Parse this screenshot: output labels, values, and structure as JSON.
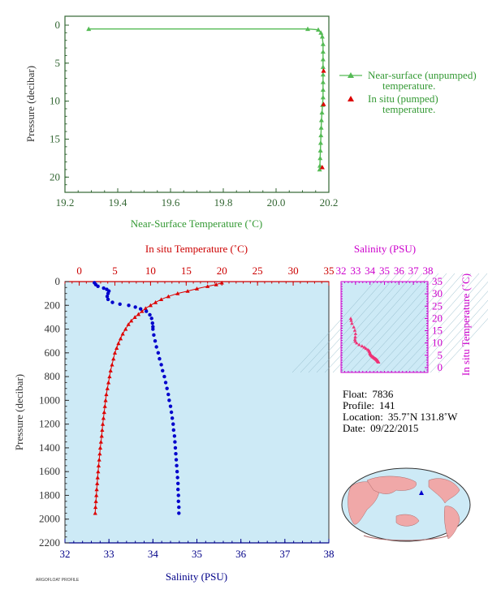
{
  "chart_data": [
    {
      "type": "line",
      "id": "near-surface",
      "xlabel": "Near-Surface Temperature (˚C)",
      "ylabel": "Pressure (decibar)",
      "xlim": [
        19.2,
        20.2
      ],
      "ylim": [
        22,
        0
      ],
      "xticks": [
        "19.2",
        "19.4",
        "19.6",
        "19.8",
        "20.0",
        "20.2"
      ],
      "yticks": [
        "0",
        "5",
        "10",
        "15",
        "20"
      ],
      "series": [
        {
          "name": "Near-surface (unpumped) temperature.",
          "color": "#55bb55",
          "marker": "triangle",
          "points": [
            [
              19.29,
              0.5
            ],
            [
              20.12,
              0.5
            ],
            [
              20.16,
              0.6
            ],
            [
              20.17,
              1.0
            ],
            [
              20.175,
              1.5
            ],
            [
              20.178,
              2.5
            ],
            [
              20.178,
              3.5
            ],
            [
              20.178,
              4.5
            ],
            [
              20.178,
              5.5
            ],
            [
              20.178,
              6.5
            ],
            [
              20.178,
              7.5
            ],
            [
              20.178,
              8.5
            ],
            [
              20.178,
              9.5
            ],
            [
              20.176,
              10.5
            ],
            [
              20.174,
              11.5
            ],
            [
              20.172,
              12.5
            ],
            [
              20.171,
              13.5
            ],
            [
              20.17,
              14.5
            ],
            [
              20.169,
              15.5
            ],
            [
              20.168,
              16.5
            ],
            [
              20.167,
              17.5
            ],
            [
              20.166,
              18.5
            ],
            [
              20.165,
              19.0
            ]
          ]
        },
        {
          "name": "In situ (pumped) temperature.",
          "color": "#dd0000",
          "marker": "triangle",
          "points": [
            [
              20.18,
              6.0
            ],
            [
              20.18,
              10.4
            ],
            [
              20.175,
              18.7
            ]
          ]
        }
      ],
      "legend": "right"
    },
    {
      "type": "line",
      "id": "profile",
      "ylabel": "Pressure (decibar)",
      "ylim": [
        2200,
        0
      ],
      "yticks": [
        "0",
        "200",
        "400",
        "600",
        "800",
        "1000",
        "1200",
        "1400",
        "1600",
        "1800",
        "2000",
        "2200"
      ],
      "top_axis": {
        "label": "In situ Temperature (˚C)",
        "lim": [
          -2,
          35
        ],
        "ticks": [
          "0",
          "5",
          "10",
          "15",
          "20",
          "25",
          "30",
          "35"
        ]
      },
      "bottom_axis": {
        "label": "Salinity (PSU)",
        "lim": [
          32,
          38
        ],
        "ticks": [
          "32",
          "33",
          "34",
          "35",
          "36",
          "37",
          "38"
        ]
      },
      "series": [
        {
          "name": "In situ Temperature",
          "color": "#dd0000",
          "marker": "triangle",
          "axis": "top",
          "points": [
            [
              20.0,
              10
            ],
            [
              19.2,
              25
            ],
            [
              18.0,
              40
            ],
            [
              16.5,
              60
            ],
            [
              15.2,
              80
            ],
            [
              13.8,
              100
            ],
            [
              12.5,
              125
            ],
            [
              11.5,
              150
            ],
            [
              10.7,
              175
            ],
            [
              10.0,
              200
            ],
            [
              9.3,
              225
            ],
            [
              8.8,
              250
            ],
            [
              8.3,
              275
            ],
            [
              7.8,
              300
            ],
            [
              7.3,
              330
            ],
            [
              6.9,
              360
            ],
            [
              6.5,
              400
            ],
            [
              6.1,
              440
            ],
            [
              5.8,
              480
            ],
            [
              5.5,
              520
            ],
            [
              5.25,
              560
            ],
            [
              5.0,
              600
            ],
            [
              4.8,
              650
            ],
            [
              4.6,
              700
            ],
            [
              4.4,
              750
            ],
            [
              4.25,
              800
            ],
            [
              4.1,
              850
            ],
            [
              3.95,
              900
            ],
            [
              3.8,
              950
            ],
            [
              3.7,
              1000
            ],
            [
              3.6,
              1050
            ],
            [
              3.5,
              1100
            ],
            [
              3.4,
              1150
            ],
            [
              3.3,
              1200
            ],
            [
              3.22,
              1250
            ],
            [
              3.15,
              1300
            ],
            [
              3.05,
              1350
            ],
            [
              2.95,
              1400
            ],
            [
              2.88,
              1450
            ],
            [
              2.8,
              1500
            ],
            [
              2.72,
              1550
            ],
            [
              2.65,
              1600
            ],
            [
              2.58,
              1650
            ],
            [
              2.52,
              1700
            ],
            [
              2.45,
              1750
            ],
            [
              2.4,
              1800
            ],
            [
              2.34,
              1850
            ],
            [
              2.28,
              1900
            ],
            [
              2.24,
              1950
            ]
          ]
        },
        {
          "name": "Salinity",
          "color": "#0000cc",
          "marker": "dot",
          "axis": "bottom",
          "points": [
            [
              32.67,
              10
            ],
            [
              32.7,
              25
            ],
            [
              32.75,
              40
            ],
            [
              32.88,
              55
            ],
            [
              32.95,
              65
            ],
            [
              33.0,
              80
            ],
            [
              32.98,
              100
            ],
            [
              32.96,
              125
            ],
            [
              32.98,
              150
            ],
            [
              33.08,
              175
            ],
            [
              33.25,
              190
            ],
            [
              33.45,
              200
            ],
            [
              33.6,
              215
            ],
            [
              33.72,
              230
            ],
            [
              33.85,
              250
            ],
            [
              33.93,
              280
            ],
            [
              33.97,
              310
            ],
            [
              33.99,
              350
            ],
            [
              34.0,
              380
            ],
            [
              34.0,
              400
            ],
            [
              34.02,
              450
            ],
            [
              34.05,
              500
            ],
            [
              34.08,
              550
            ],
            [
              34.12,
              600
            ],
            [
              34.15,
              650
            ],
            [
              34.19,
              700
            ],
            [
              34.22,
              750
            ],
            [
              34.26,
              800
            ],
            [
              34.29,
              850
            ],
            [
              34.32,
              900
            ],
            [
              34.35,
              950
            ],
            [
              34.37,
              1000
            ],
            [
              34.4,
              1050
            ],
            [
              34.42,
              1100
            ],
            [
              34.44,
              1150
            ],
            [
              34.46,
              1200
            ],
            [
              34.47,
              1250
            ],
            [
              34.49,
              1300
            ],
            [
              34.5,
              1350
            ],
            [
              34.51,
              1400
            ],
            [
              34.52,
              1450
            ],
            [
              34.53,
              1500
            ],
            [
              34.54,
              1550
            ],
            [
              34.55,
              1600
            ],
            [
              34.56,
              1650
            ],
            [
              34.57,
              1700
            ],
            [
              34.57,
              1750
            ],
            [
              34.58,
              1800
            ],
            [
              34.58,
              1850
            ],
            [
              34.59,
              1900
            ],
            [
              34.59,
              1950
            ]
          ]
        }
      ]
    },
    {
      "type": "scatter",
      "id": "ts-diagram",
      "top_label": "Salinity (PSU)",
      "ylabel": "In situ Temperature (˚C)",
      "xlim": [
        32,
        38
      ],
      "ylim": [
        -2,
        35
      ],
      "xticks": [
        "32",
        "33",
        "34",
        "35",
        "36",
        "37",
        "38"
      ],
      "yticks": [
        "0",
        "5",
        "10",
        "15",
        "20",
        "25",
        "30",
        "35"
      ],
      "series": [
        {
          "name": "T-S",
          "color": "#ee3377",
          "marker": "triangle",
          "points": [
            [
              32.67,
              20.0
            ],
            [
              32.7,
              19.2
            ],
            [
              32.75,
              18.0
            ],
            [
              32.88,
              16.5
            ],
            [
              32.95,
              15.2
            ],
            [
              33.0,
              13.8
            ],
            [
              32.98,
              12.5
            ],
            [
              32.96,
              11.5
            ],
            [
              32.98,
              10.7
            ],
            [
              33.08,
              10.0
            ],
            [
              33.25,
              9.3
            ],
            [
              33.45,
              8.8
            ],
            [
              33.6,
              8.3
            ],
            [
              33.72,
              7.8
            ],
            [
              33.85,
              7.3
            ],
            [
              33.93,
              6.9
            ],
            [
              33.97,
              6.5
            ],
            [
              33.99,
              6.1
            ],
            [
              34.0,
              5.8
            ],
            [
              34.02,
              5.5
            ],
            [
              34.05,
              5.25
            ],
            [
              34.08,
              5.0
            ],
            [
              34.12,
              4.8
            ],
            [
              34.15,
              4.6
            ],
            [
              34.19,
              4.4
            ],
            [
              34.22,
              4.25
            ],
            [
              34.26,
              4.1
            ],
            [
              34.29,
              3.95
            ],
            [
              34.32,
              3.8
            ],
            [
              34.35,
              3.7
            ],
            [
              34.37,
              3.6
            ],
            [
              34.4,
              3.5
            ],
            [
              34.42,
              3.4
            ],
            [
              34.44,
              3.3
            ],
            [
              34.46,
              3.22
            ],
            [
              34.47,
              3.15
            ],
            [
              34.49,
              3.05
            ],
            [
              34.5,
              2.95
            ],
            [
              34.51,
              2.88
            ],
            [
              34.52,
              2.8
            ],
            [
              34.53,
              2.72
            ],
            [
              34.54,
              2.65
            ],
            [
              34.55,
              2.58
            ],
            [
              34.56,
              2.52
            ],
            [
              34.57,
              2.45
            ],
            [
              34.57,
              2.4
            ],
            [
              34.58,
              2.34
            ],
            [
              34.58,
              2.28
            ],
            [
              34.59,
              2.24
            ]
          ]
        }
      ]
    }
  ],
  "info": {
    "float_label": "Float:",
    "float_value": "7836",
    "profile_label": "Profile:",
    "profile_value": "141",
    "location_label": "Location:",
    "location_value": "35.7˚N  131.8˚W",
    "date_label": "Date:",
    "date_value": "09/22/2015"
  },
  "footer_note": "ARGOFLOAT PROFILE",
  "colors": {
    "axis_green": "#336633",
    "label_green": "#339933",
    "series_green": "#55bb55",
    "temperature_red": "#dd0000",
    "salinity_blue": "#0000cc",
    "salinity_axis_blue": "#000088",
    "ts_magenta": "#cc00cc",
    "ts_points": "#ee3377",
    "plot_bg": "#cdeaf6",
    "land": "#f0a8a8",
    "ocean": "#cdeaf6"
  }
}
